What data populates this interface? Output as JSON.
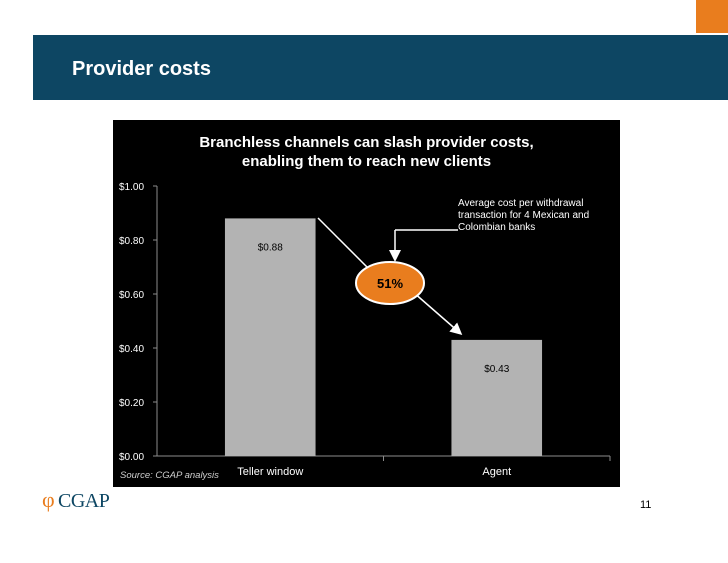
{
  "header": {
    "title": "Provider costs"
  },
  "chart_data": {
    "type": "bar",
    "title": "Branchless channels can slash provider costs, enabling them to reach new clients",
    "title_lines": [
      "Branchless channels can slash provider costs,",
      "enabling them to reach new clients"
    ],
    "categories": [
      "Teller window",
      "Agent"
    ],
    "values": [
      0.88,
      0.43
    ],
    "value_labels": [
      "$0.88",
      "$0.43"
    ],
    "y_ticks": [
      0,
      0.2,
      0.4,
      0.6,
      0.8,
      1.0
    ],
    "y_tick_labels": [
      "$0.00",
      "$0.20",
      "$0.40",
      "$0.60",
      "$0.80",
      "$1.00"
    ],
    "ylim": [
      0,
      1.0
    ],
    "grid": false,
    "bar_color": "#b3b3b3",
    "background_color": "#000000",
    "callout": {
      "label": "51%",
      "color": "#e97d1e",
      "border_color": "#ffffff"
    },
    "annotation": "Average cost  per withdrawal transaction for 4 Mexican and Colombian banks",
    "source": "Source: CGAP analysis"
  },
  "colors": {
    "header_band": "#0d4663",
    "accent": "#e97d1e",
    "logo": "#0d4663"
  },
  "footer": {
    "logo_text": "CGAP",
    "page_number": "11"
  }
}
